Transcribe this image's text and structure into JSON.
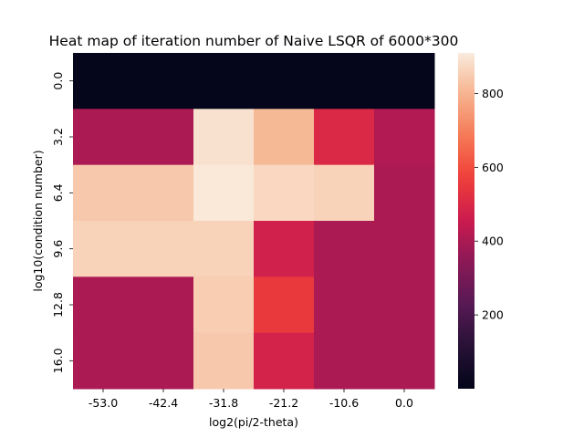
{
  "chart_data": {
    "type": "heatmap",
    "title": "Heat map of iteration number of Naive LSQR of 6000*300",
    "xlabel": "log2(pi/2-theta)",
    "ylabel": "log10(condition number)",
    "x_categories": [
      "-53.0",
      "-42.4",
      "-31.8",
      "-21.2",
      "-10.6",
      "0.0"
    ],
    "y_categories": [
      "0.0",
      "3.2",
      "6.4",
      "9.6",
      "12.8",
      "16.0"
    ],
    "values": [
      [
        5,
        5,
        5,
        5,
        5,
        5
      ],
      [
        400,
        400,
        890,
        810,
        500,
        410
      ],
      [
        840,
        840,
        905,
        870,
        860,
        400
      ],
      [
        860,
        860,
        860,
        470,
        400,
        400
      ],
      [
        400,
        400,
        850,
        550,
        400,
        400
      ],
      [
        400,
        400,
        840,
        480,
        400,
        400
      ]
    ],
    "colorbar": {
      "min": 0,
      "max": 910,
      "ticks": [
        200,
        400,
        600,
        800
      ],
      "colormap": "rocket"
    }
  }
}
